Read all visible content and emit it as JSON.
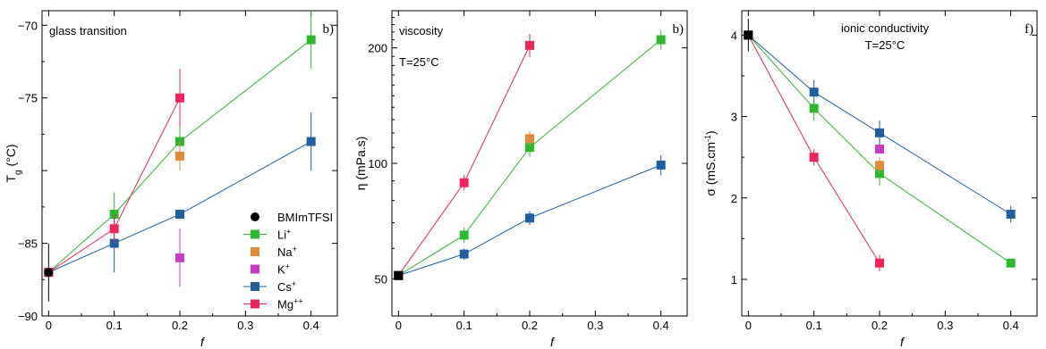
{
  "colors": {
    "BMImTFSI": "#000000",
    "Li": "#2db82d",
    "Na": "#e08a3a",
    "K": "#c83cc8",
    "Cs": "#1f5f9f",
    "Mg": "#f0245a"
  },
  "legend": [
    {
      "key": "BMImTFSI",
      "base": "BMImTFSI",
      "sup": "",
      "marker": "circle"
    },
    {
      "key": "Li",
      "base": "Li",
      "sup": "+",
      "marker": "square-line"
    },
    {
      "key": "Na",
      "base": "Na",
      "sup": "+",
      "marker": "square"
    },
    {
      "key": "K",
      "base": "K",
      "sup": "+",
      "marker": "square"
    },
    {
      "key": "Cs",
      "base": "Cs",
      "sup": "+",
      "marker": "square-line"
    },
    {
      "key": "Mg",
      "base": "Mg",
      "sup": "++",
      "marker": "square-line"
    }
  ],
  "chart_data": [
    {
      "type": "line",
      "panel_label": "b)",
      "title": "glass transition",
      "subtitle": "",
      "xlabel": "f",
      "ylabel": {
        "base": "T",
        "sub": "g",
        "rest": " (°C)"
      },
      "xlim": [
        -0.01,
        0.44
      ],
      "ylim": [
        -90,
        -69
      ],
      "xticks": [
        0,
        0.1,
        0.2,
        0.3,
        0.4
      ],
      "xtick_labels": [
        "0",
        "0.1",
        "0.2",
        "0.3",
        "0.4"
      ],
      "yticks": [
        -90,
        -85,
        -80,
        -75,
        -70
      ],
      "ytick_labels": [
        "−90",
        "−85",
        "",
        "−75",
        "−70"
      ],
      "series": [
        {
          "key": "Li",
          "connected": true,
          "points": [
            {
              "x": 0,
              "y": -87,
              "err": 0
            },
            {
              "x": 0.1,
              "y": -83,
              "err": 1.5
            },
            {
              "x": 0.2,
              "y": -78,
              "err": 1.5
            },
            {
              "x": 0.4,
              "y": -71,
              "err": 2
            }
          ]
        },
        {
          "key": "Cs",
          "connected": true,
          "points": [
            {
              "x": 0,
              "y": -87,
              "err": 0
            },
            {
              "x": 0.1,
              "y": -85,
              "err": 2
            },
            {
              "x": 0.2,
              "y": -83,
              "err": 0
            },
            {
              "x": 0.4,
              "y": -78,
              "err": 2
            }
          ]
        },
        {
          "key": "Mg",
          "connected": true,
          "points": [
            {
              "x": 0,
              "y": -87,
              "err": 0
            },
            {
              "x": 0.1,
              "y": -84,
              "err": 1
            },
            {
              "x": 0.2,
              "y": -75,
              "err": 2
            }
          ]
        },
        {
          "key": "Na",
          "connected": false,
          "points": [
            {
              "x": 0.2,
              "y": -79,
              "err": 1
            }
          ]
        },
        {
          "key": "K",
          "connected": false,
          "points": [
            {
              "x": 0.2,
              "y": -86,
              "err": 2
            }
          ]
        },
        {
          "key": "BMImTFSI",
          "connected": false,
          "marker": "circle",
          "points": [
            {
              "x": 0,
              "y": -87,
              "err": 2
            }
          ]
        }
      ]
    },
    {
      "type": "line",
      "panel_label": "b)",
      "title": "viscosity",
      "subtitle": "T=25°C",
      "xlabel": "f",
      "ylabel": {
        "base": "η",
        "sub": "",
        "rest": " (mPa.s)"
      },
      "yscale": "log",
      "xlim": [
        -0.01,
        0.44
      ],
      "ylim": [
        40,
        250
      ],
      "xticks": [
        0,
        0.1,
        0.2,
        0.3,
        0.4
      ],
      "xtick_labels": [
        "0",
        "0.1",
        "0.2",
        "0.3",
        "0.4"
      ],
      "yticks": [
        50,
        100,
        200
      ],
      "ytick_labels": [
        "50",
        "100",
        "200"
      ],
      "series": [
        {
          "key": "Li",
          "connected": true,
          "points": [
            {
              "x": 0,
              "y": 51,
              "err": 0
            },
            {
              "x": 0.1,
              "y": 65,
              "err": 3
            },
            {
              "x": 0.2,
              "y": 110,
              "err": 6
            },
            {
              "x": 0.4,
              "y": 210,
              "err": 12
            }
          ]
        },
        {
          "key": "Cs",
          "connected": true,
          "points": [
            {
              "x": 0,
              "y": 51,
              "err": 0
            },
            {
              "x": 0.1,
              "y": 58,
              "err": 2
            },
            {
              "x": 0.2,
              "y": 72,
              "err": 3
            },
            {
              "x": 0.4,
              "y": 99,
              "err": 6
            }
          ]
        },
        {
          "key": "Mg",
          "connected": true,
          "points": [
            {
              "x": 0,
              "y": 51,
              "err": 0
            },
            {
              "x": 0.1,
              "y": 89,
              "err": 4
            },
            {
              "x": 0.2,
              "y": 203,
              "err": 14
            }
          ]
        },
        {
          "key": "Na",
          "connected": false,
          "points": [
            {
              "x": 0.2,
              "y": 116,
              "err": 5
            }
          ]
        },
        {
          "key": "BMImTFSI",
          "connected": false,
          "marker": "square",
          "points": [
            {
              "x": 0,
              "y": 51,
              "err": 0
            }
          ]
        }
      ]
    },
    {
      "type": "line",
      "panel_label": "f)",
      "title": "ionic conductivity",
      "subtitle": "T=25°C",
      "xlabel": "f",
      "ylabel": {
        "base": "σ (mS.cm",
        "sup": "-1",
        "rest": ")"
      },
      "xlim": [
        -0.01,
        0.44
      ],
      "ylim": [
        0.55,
        4.3
      ],
      "xticks": [
        0,
        0.1,
        0.2,
        0.3,
        0.4
      ],
      "xtick_labels": [
        "0",
        "0.1",
        "0.2",
        "0.3",
        "0.4"
      ],
      "yticks": [
        1,
        2,
        3,
        4
      ],
      "ytick_labels": [
        "1",
        "2",
        "3",
        "4"
      ],
      "series": [
        {
          "key": "Cs",
          "connected": true,
          "points": [
            {
              "x": 0,
              "y": 4.0,
              "err": 0
            },
            {
              "x": 0.1,
              "y": 3.3,
              "err": 0.15
            },
            {
              "x": 0.2,
              "y": 2.8,
              "err": 0.15
            },
            {
              "x": 0.4,
              "y": 1.8,
              "err": 0.1
            }
          ]
        },
        {
          "key": "Li",
          "connected": true,
          "points": [
            {
              "x": 0,
              "y": 4.0,
              "err": 0
            },
            {
              "x": 0.1,
              "y": 3.1,
              "err": 0.15
            },
            {
              "x": 0.2,
              "y": 2.3,
              "err": 0.15
            },
            {
              "x": 0.4,
              "y": 1.2,
              "err": 0.05
            }
          ]
        },
        {
          "key": "Mg",
          "connected": true,
          "points": [
            {
              "x": 0,
              "y": 4.0,
              "err": 0
            },
            {
              "x": 0.1,
              "y": 2.5,
              "err": 0.1
            },
            {
              "x": 0.2,
              "y": 1.2,
              "err": 0.1
            }
          ]
        },
        {
          "key": "K",
          "connected": false,
          "points": [
            {
              "x": 0.2,
              "y": 2.6,
              "err": 0
            }
          ]
        },
        {
          "key": "Na",
          "connected": false,
          "points": [
            {
              "x": 0.2,
              "y": 2.4,
              "err": 0.1
            }
          ]
        },
        {
          "key": "BMImTFSI",
          "connected": false,
          "marker": "square",
          "points": [
            {
              "x": 0,
              "y": 4.0,
              "err": 0.2
            }
          ]
        }
      ]
    }
  ]
}
